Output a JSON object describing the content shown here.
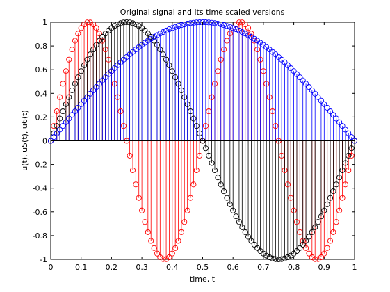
{
  "chart_data": {
    "type": "stem",
    "title": "Original signal and its time scaled versions",
    "xlabel": "time, t",
    "ylabel": "u(t), u5(t), u6(t)",
    "xlim": [
      0,
      1
    ],
    "ylim": [
      -1,
      1
    ],
    "xticks": [
      "0",
      "0.1",
      "0.2",
      "0.3",
      "0.4",
      "0.5",
      "0.6",
      "0.7",
      "0.8",
      "0.9",
      "1"
    ],
    "yticks": [
      "1",
      "0.8",
      "0.6",
      "0.4",
      "0.2",
      "0",
      "-0.2",
      "-0.4",
      "-0.6",
      "-0.8",
      "-1"
    ],
    "grid": false,
    "sample_step": 0.01,
    "series": [
      {
        "id": "blue",
        "color": "#0000ff",
        "x_range": [
          0,
          1
        ],
        "function": "sin(pi*t)"
      },
      {
        "id": "black",
        "color": "#000000",
        "x_range": [
          0,
          1
        ],
        "function": "sin(2*pi*t)"
      },
      {
        "id": "red",
        "color": "#ff0000",
        "x_range": [
          0,
          1
        ],
        "function": "sin(4*pi*t)"
      }
    ],
    "draw_order": [
      "red",
      "black",
      "blue"
    ]
  }
}
